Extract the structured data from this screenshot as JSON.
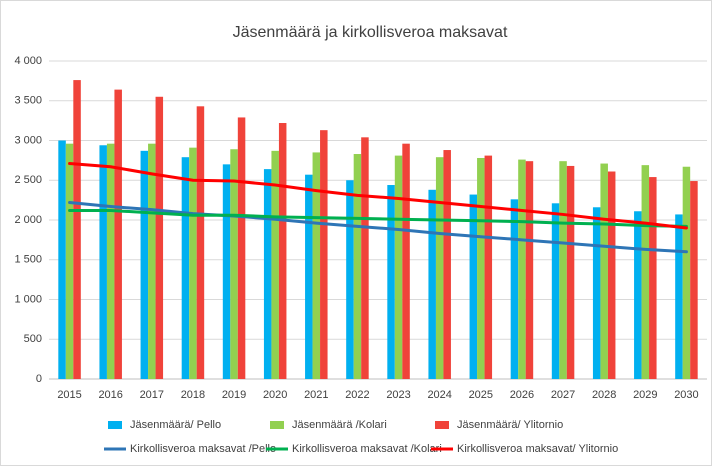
{
  "chart_data": {
    "type": "bar",
    "title": "Jäsenmäärä ja kirkollisveroa maksavat",
    "categories": [
      "2015",
      "2016",
      "2017",
      "2018",
      "2019",
      "2020",
      "2021",
      "2022",
      "2023",
      "2024",
      "2025",
      "2026",
      "2027",
      "2028",
      "2029",
      "2030"
    ],
    "series": [
      {
        "name": "Jäsenmäärä/ Pello",
        "type": "bar",
        "color": "#00b0f0",
        "values": [
          3000,
          2940,
          2870,
          2790,
          2700,
          2640,
          2570,
          2500,
          2440,
          2380,
          2320,
          2260,
          2210,
          2160,
          2110,
          2070
        ]
      },
      {
        "name": "Jäsenmäärä /Kolari",
        "type": "bar",
        "color": "#92d050",
        "values": [
          2960,
          2960,
          2960,
          2910,
          2890,
          2870,
          2850,
          2830,
          2810,
          2790,
          2780,
          2760,
          2740,
          2710,
          2690,
          2670
        ]
      },
      {
        "name": "Jäsenmäärä/ Ylitornio",
        "type": "bar",
        "color": "#f0433a",
        "values": [
          3760,
          3640,
          3550,
          3430,
          3290,
          3220,
          3130,
          3040,
          2960,
          2880,
          2810,
          2740,
          2680,
          2610,
          2540,
          2490
        ]
      },
      {
        "name": "Kirkollisveroa maksavat /Pello",
        "type": "line",
        "color": "#2e75b6",
        "values": [
          2220,
          2170,
          2130,
          2080,
          2050,
          2010,
          1960,
          1920,
          1880,
          1830,
          1790,
          1750,
          1710,
          1670,
          1630,
          1600
        ]
      },
      {
        "name": "Kirkollisveroa maksavat /Kolari",
        "type": "line",
        "color": "#00b050",
        "values": [
          2120,
          2120,
          2090,
          2060,
          2060,
          2040,
          2030,
          2020,
          2010,
          2000,
          1990,
          1980,
          1960,
          1950,
          1930,
          1920
        ]
      },
      {
        "name": "Kirkollisveroa maksavat/ Ylitornio",
        "type": "line",
        "color": "#ff0000",
        "values": [
          2710,
          2670,
          2580,
          2500,
          2490,
          2440,
          2370,
          2310,
          2270,
          2220,
          2170,
          2120,
          2070,
          2010,
          1960,
          1900
        ]
      }
    ],
    "ylim": [
      0,
      4000
    ],
    "yticks": [
      0,
      500,
      {
        "value": 1000,
        "label": "1 000"
      },
      {
        "value": 1500,
        "label": "1 500"
      },
      {
        "value": 2000,
        "label": "2 000"
      },
      {
        "value": 2500,
        "label": "2 500"
      },
      {
        "value": 3000,
        "label": "3 000"
      },
      {
        "value": 3500,
        "label": "3 500"
      },
      {
        "value": 4000,
        "label": "4 000"
      }
    ],
    "grid": true,
    "legend": "bottom"
  }
}
